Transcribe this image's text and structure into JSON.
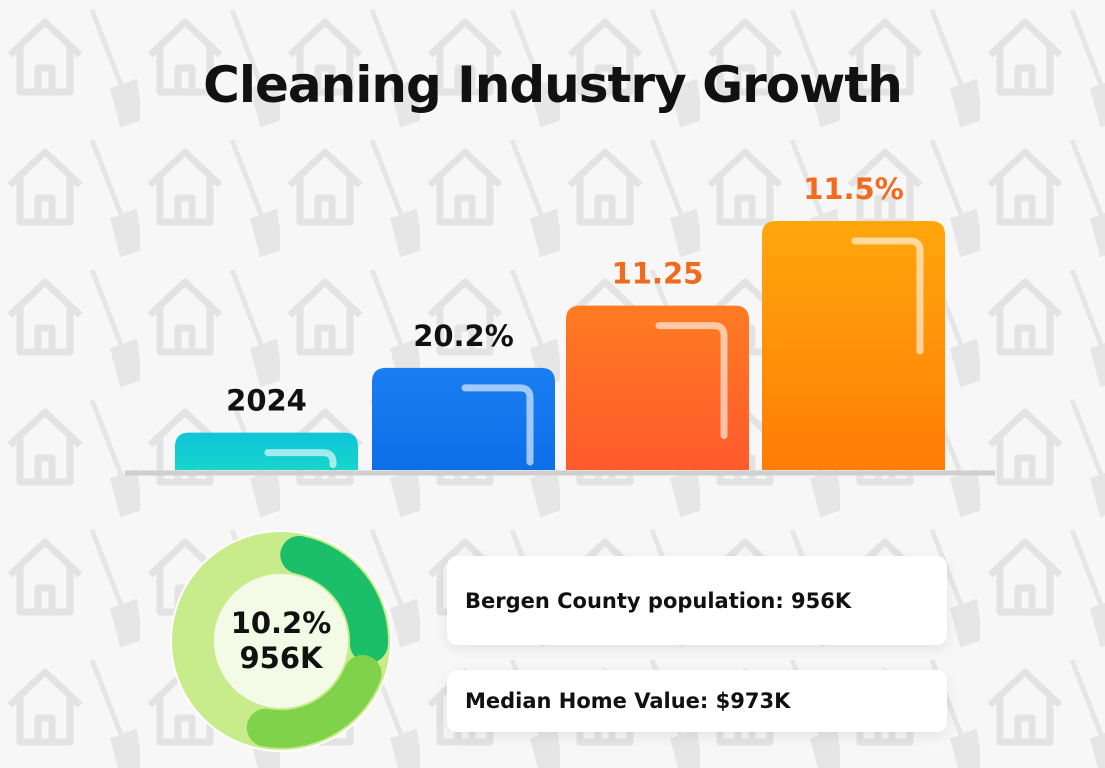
{
  "title": "Cleaning Industry Growth",
  "chart_data": {
    "type": "bar",
    "title": "Cleaning Industry Growth",
    "categories": [
      "",
      "",
      "",
      ""
    ],
    "data_labels": [
      "2024",
      "20.2%",
      "11.25",
      "11.5%"
    ],
    "relative_heights": [
      15,
      41,
      66,
      100
    ],
    "colors": [
      "#14c8d4",
      "#1677f0",
      "#ff6a2a",
      "#ff9a10"
    ],
    "label_colors": [
      "#111111",
      "#111111",
      "#f26a1b",
      "#f26a1b"
    ],
    "grid": false
  },
  "donut": {
    "value_line1": "10.2%",
    "value_line2": "956K",
    "colors": {
      "track": "#c8ec8c",
      "arc1": "#1bbf6a",
      "arc2": "#7fd24a"
    }
  },
  "cards": [
    {
      "text": "Bergen County population: 956K"
    },
    {
      "text": "Median Home Value: $973K"
    }
  ],
  "background_icons": [
    "house-icon",
    "broom-icon"
  ]
}
